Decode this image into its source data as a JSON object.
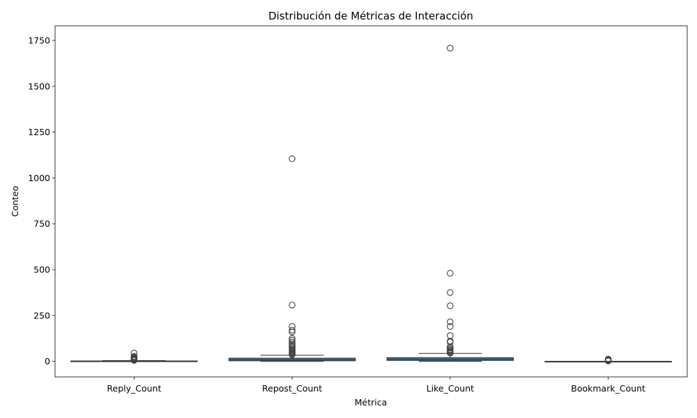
{
  "chart_data": {
    "type": "box",
    "title": "Distribución de Métricas de Interacción",
    "xlabel": "Métrica",
    "ylabel": "Conteo",
    "ylim": [
      -85,
      1830
    ],
    "yticks": [
      0,
      250,
      500,
      750,
      1000,
      1250,
      1500,
      1750
    ],
    "grid": false,
    "colors": {
      "box_fill": "#3274a1",
      "line": "#3f3f3f",
      "axis": "#000000"
    },
    "categories": [
      "Reply_Count",
      "Repost_Count",
      "Like_Count",
      "Bookmark_Count"
    ],
    "series": [
      {
        "category": "Reply_Count",
        "q1": 0,
        "median": 1,
        "q3": 2,
        "whisker_low": 0,
        "whisker_high": 4,
        "outliers": [
          5,
          7,
          9,
          12,
          15,
          18,
          22,
          27,
          45
        ]
      },
      {
        "category": "Repost_Count",
        "q1": 3,
        "median": 8,
        "q3": 17,
        "whisker_low": 0,
        "whisker_high": 33,
        "outliers": [
          36,
          40,
          45,
          50,
          55,
          60,
          65,
          72,
          80,
          88,
          95,
          105,
          115,
          125,
          160,
          170,
          190,
          307,
          1105
        ]
      },
      {
        "category": "Like_Count",
        "q1": 5,
        "median": 10,
        "q3": 20,
        "whisker_low": 0,
        "whisker_high": 43,
        "outliers": [
          45,
          50,
          55,
          60,
          65,
          72,
          80,
          105,
          110,
          140,
          190,
          215,
          303,
          375,
          480,
          1708
        ]
      },
      {
        "category": "Bookmark_Count",
        "q1": 0,
        "median": 0,
        "q3": 0,
        "whisker_low": 0,
        "whisker_high": 0,
        "outliers": [
          2,
          4,
          6,
          9,
          12
        ]
      }
    ]
  }
}
